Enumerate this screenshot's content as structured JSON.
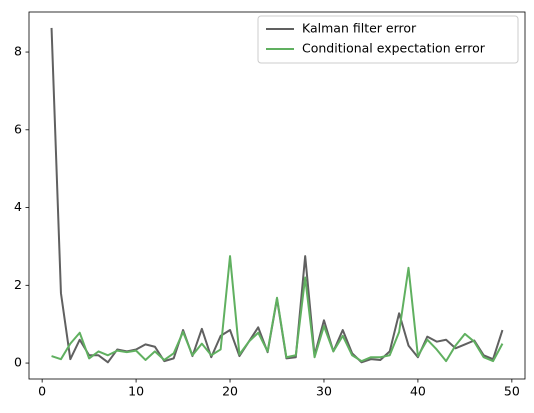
{
  "chart_data": {
    "type": "line",
    "x": [
      1,
      2,
      3,
      4,
      5,
      6,
      7,
      8,
      9,
      10,
      11,
      12,
      13,
      14,
      15,
      16,
      17,
      18,
      19,
      20,
      21,
      22,
      23,
      24,
      25,
      26,
      27,
      28,
      29,
      30,
      31,
      32,
      33,
      34,
      35,
      36,
      37,
      38,
      39,
      40,
      41,
      42,
      43,
      44,
      45,
      46,
      47,
      48,
      49
    ],
    "series": [
      {
        "name": "Kalman filter error",
        "color": "#606060",
        "values": [
          8.62,
          1.8,
          0.1,
          0.6,
          0.2,
          0.2,
          0.02,
          0.35,
          0.3,
          0.35,
          0.48,
          0.42,
          0.05,
          0.12,
          0.85,
          0.18,
          0.88,
          0.15,
          0.7,
          0.85,
          0.18,
          0.55,
          0.92,
          0.28,
          1.65,
          0.12,
          0.15,
          2.75,
          0.2,
          1.1,
          0.3,
          0.85,
          0.25,
          0.02,
          0.1,
          0.08,
          0.3,
          1.28,
          0.45,
          0.15,
          0.68,
          0.55,
          0.6,
          0.38,
          0.48,
          0.58,
          0.2,
          0.1,
          0.85
        ]
      },
      {
        "name": "Conditional expectation error",
        "color": "#60b060",
        "values": [
          0.18,
          0.1,
          0.5,
          0.78,
          0.12,
          0.3,
          0.2,
          0.32,
          0.28,
          0.32,
          0.08,
          0.3,
          0.08,
          0.25,
          0.8,
          0.2,
          0.5,
          0.2,
          0.35,
          2.75,
          0.22,
          0.55,
          0.78,
          0.3,
          1.68,
          0.15,
          0.2,
          2.2,
          0.15,
          0.95,
          0.3,
          0.7,
          0.2,
          0.05,
          0.15,
          0.15,
          0.2,
          0.8,
          2.45,
          0.18,
          0.6,
          0.35,
          0.05,
          0.45,
          0.75,
          0.55,
          0.15,
          0.05,
          0.5
        ]
      }
    ],
    "xlim": [
      -1.4,
      51.4
    ],
    "ylim": [
      -0.41,
      9.03
    ],
    "xticks": [
      0,
      10,
      20,
      30,
      40,
      50
    ],
    "yticks": [
      0,
      2,
      4,
      6,
      8
    ],
    "legend": "upper right"
  }
}
